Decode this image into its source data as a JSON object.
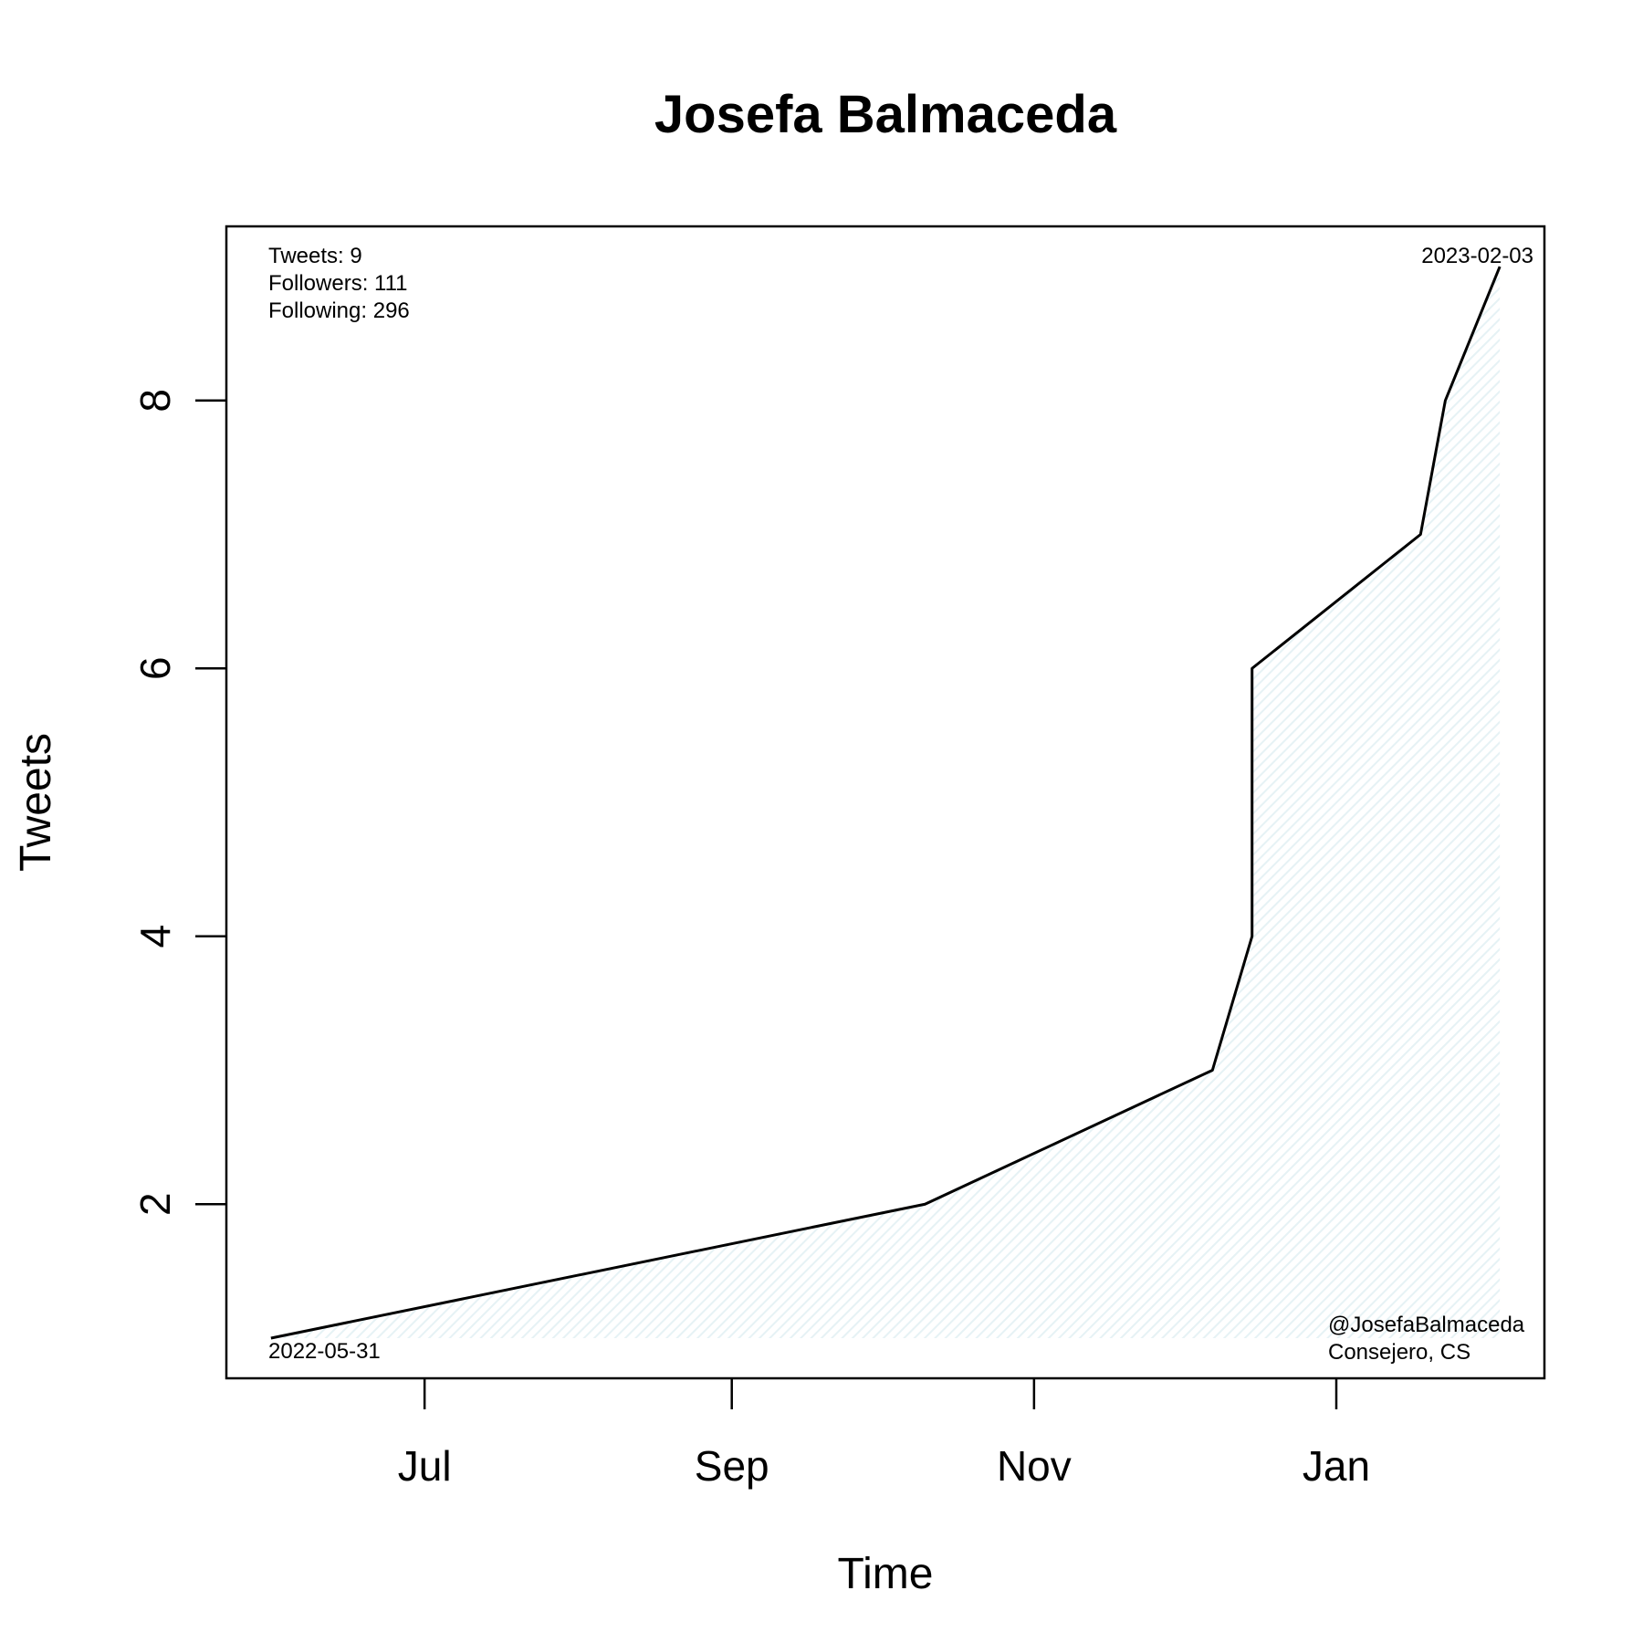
{
  "chart_data": {
    "type": "area",
    "title": "Josefa Balmaceda",
    "xlabel": "Time",
    "ylabel": "Tweets",
    "x_ticks": [
      {
        "date": "2022-07-01",
        "label": "Jul"
      },
      {
        "date": "2022-09-01",
        "label": "Sep"
      },
      {
        "date": "2022-11-01",
        "label": "Nov"
      },
      {
        "date": "2023-01-01",
        "label": "Jan"
      }
    ],
    "y_ticks": [
      2,
      4,
      6,
      8
    ],
    "xlim": [
      "2022-05-22",
      "2023-02-12"
    ],
    "ylim": [
      0.7,
      9.3
    ],
    "grid": false,
    "fill_color": "#e6f2f5",
    "line_color": "#000000",
    "series": [
      {
        "points": [
          {
            "x": "2022-05-31",
            "y": 1
          },
          {
            "x": "2022-10-10",
            "y": 2
          },
          {
            "x": "2022-12-07",
            "y": 3
          },
          {
            "x": "2022-12-15",
            "y": 4
          },
          {
            "x": "2022-12-15",
            "y": 6
          },
          {
            "x": "2023-01-18",
            "y": 7
          },
          {
            "x": "2023-01-23",
            "y": 8
          },
          {
            "x": "2023-02-03",
            "y": 9
          }
        ]
      }
    ],
    "annotations": {
      "stats": [
        "Tweets: 9",
        "Followers: 111",
        "Following: 296"
      ],
      "start_date": "2022-05-31",
      "end_date": "2023-02-03",
      "handle": "@JosefaBalmaceda",
      "role": "Consejero, CS"
    }
  }
}
